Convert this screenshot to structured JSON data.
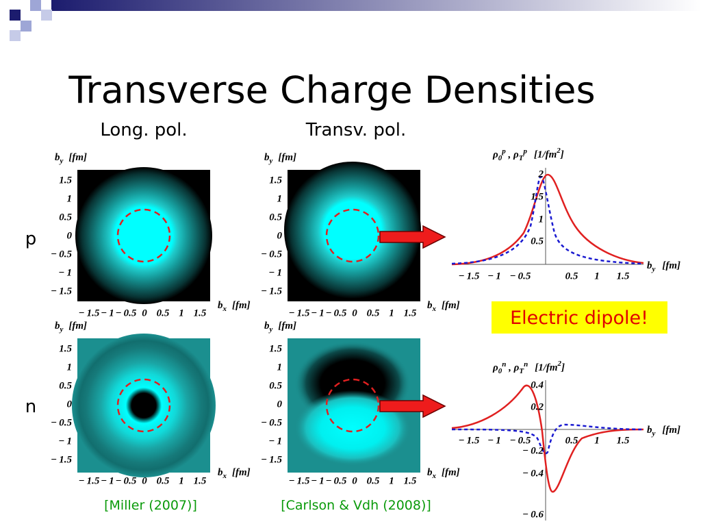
{
  "title": "Transverse Charge Densities",
  "column_labels": [
    "Long. pol.",
    "Transv. pol."
  ],
  "row_labels": [
    "p",
    "n"
  ],
  "density_axes": {
    "y_label": {
      "symbol": "b",
      "sub": "y",
      "unit": "[fm]"
    },
    "x_label": {
      "symbol": "b",
      "sub": "x",
      "unit": "[fm]"
    },
    "yticks": [
      "1.5",
      "1",
      "0.5",
      "0",
      "− 0.5",
      "− 1",
      "− 1.5"
    ],
    "xticks": [
      "− 1.5",
      "− 1",
      "− 0.5",
      "0",
      "0.5",
      "1",
      "1.5"
    ]
  },
  "proton_plot": {
    "y_label": {
      "rho": "ρ",
      "sub1": "0",
      "sup1": "p",
      "sep": " , ",
      "sub2": "T",
      "sup2": "p",
      "unit": "[1/fm",
      "unit_sup": "2",
      "unit_end": "]"
    },
    "x_label": {
      "symbol": "b",
      "sub": "y",
      "unit": "[fm]"
    },
    "yticks": [
      "2",
      "1.5",
      "1",
      "0.5"
    ],
    "xticks": [
      "− 1.5",
      "− 1",
      "− 0.5",
      "0.5",
      "1",
      "1.5"
    ]
  },
  "neutron_plot": {
    "y_label": {
      "rho": "ρ",
      "sub1": "0",
      "sup1": "n",
      "sep": " , ",
      "sub2": "T",
      "sup2": "n",
      "unit": "[1/fm",
      "unit_sup": "2",
      "unit_end": "]"
    },
    "x_label": {
      "symbol": "b",
      "sub": "y",
      "unit": "[fm]"
    },
    "yticks": [
      "0.4",
      "0.2",
      "− 0.2",
      "− 0.4",
      "− 0.6"
    ],
    "xticks": [
      "− 1.5",
      "− 1",
      "− 0.5",
      "0.5",
      "1",
      "1.5"
    ]
  },
  "callout": "Electric dipole!",
  "citations": [
    "[Miller (2007)]",
    "[Carlson & Vdh (2008)]"
  ]
}
